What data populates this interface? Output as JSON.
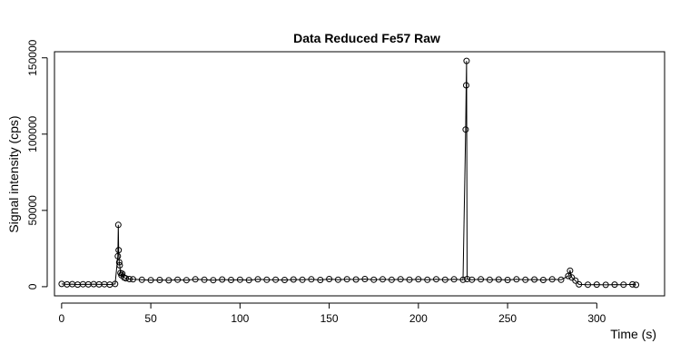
{
  "chart_data": {
    "type": "scatter",
    "title": "Data Reduced Fe57 Raw",
    "xlabel": "Time (s)",
    "ylabel": "Signal intensity (cps)",
    "xlim": [
      -4,
      338
    ],
    "ylim": [
      -6000,
      154000
    ],
    "x_ticks": [
      0,
      50,
      100,
      150,
      200,
      250,
      300
    ],
    "y_ticks": [
      0,
      50000,
      100000,
      150000
    ],
    "x_tick_labels": [
      "0",
      "50",
      "100",
      "150",
      "200",
      "250",
      "300"
    ],
    "y_tick_labels": [
      "0",
      "50000",
      "100000",
      "150000"
    ],
    "grid": false,
    "legend": "none",
    "point_style": "open-circle",
    "connecting_line": true,
    "series": [
      {
        "points": [
          [
            0,
            1800
          ],
          [
            3,
            1500
          ],
          [
            6,
            1700
          ],
          [
            9,
            1400
          ],
          [
            12,
            1600
          ],
          [
            15,
            1500
          ],
          [
            18,
            1700
          ],
          [
            21,
            1500
          ],
          [
            24,
            1600
          ],
          [
            27,
            1400
          ],
          [
            30,
            1800
          ],
          [
            31.5,
            20000
          ],
          [
            31.8,
            40500
          ],
          [
            32.0,
            24000
          ],
          [
            32.3,
            16000
          ],
          [
            32.6,
            14000
          ],
          [
            33.0,
            9000
          ],
          [
            33.5,
            7500
          ],
          [
            34,
            8500
          ],
          [
            35,
            6000
          ],
          [
            36,
            5500
          ],
          [
            38,
            5000
          ],
          [
            40,
            4800
          ],
          [
            45,
            4500
          ],
          [
            50,
            4300
          ],
          [
            55,
            4400
          ],
          [
            60,
            4200
          ],
          [
            65,
            4600
          ],
          [
            70,
            4300
          ],
          [
            75,
            4800
          ],
          [
            80,
            4500
          ],
          [
            85,
            4300
          ],
          [
            90,
            4700
          ],
          [
            95,
            4400
          ],
          [
            100,
            4600
          ],
          [
            105,
            4300
          ],
          [
            110,
            4800
          ],
          [
            115,
            4500
          ],
          [
            120,
            4600
          ],
          [
            125,
            4400
          ],
          [
            130,
            4700
          ],
          [
            135,
            4500
          ],
          [
            140,
            4800
          ],
          [
            145,
            4400
          ],
          [
            150,
            5000
          ],
          [
            155,
            4600
          ],
          [
            160,
            4900
          ],
          [
            165,
            4700
          ],
          [
            170,
            5000
          ],
          [
            175,
            4600
          ],
          [
            180,
            4800
          ],
          [
            185,
            4500
          ],
          [
            190,
            4900
          ],
          [
            195,
            4600
          ],
          [
            200,
            4800
          ],
          [
            205,
            4500
          ],
          [
            210,
            4900
          ],
          [
            215,
            4600
          ],
          [
            220,
            4800
          ],
          [
            225,
            4500
          ],
          [
            226.5,
            103000
          ],
          [
            226.8,
            132000
          ],
          [
            227.0,
            148000
          ],
          [
            227.3,
            5000
          ],
          [
            230,
            4600
          ],
          [
            235,
            4800
          ],
          [
            240,
            4500
          ],
          [
            245,
            4700
          ],
          [
            250,
            4400
          ],
          [
            255,
            4800
          ],
          [
            260,
            4500
          ],
          [
            265,
            4700
          ],
          [
            270,
            4400
          ],
          [
            275,
            4800
          ],
          [
            280,
            4500
          ],
          [
            284,
            7000
          ],
          [
            285,
            10500
          ],
          [
            286,
            6000
          ],
          [
            288,
            4000
          ],
          [
            290,
            1500
          ],
          [
            295,
            1300
          ],
          [
            300,
            1400
          ],
          [
            305,
            1200
          ],
          [
            310,
            1400
          ],
          [
            315,
            1300
          ],
          [
            320,
            1500
          ],
          [
            322,
            1200
          ]
        ]
      }
    ]
  }
}
